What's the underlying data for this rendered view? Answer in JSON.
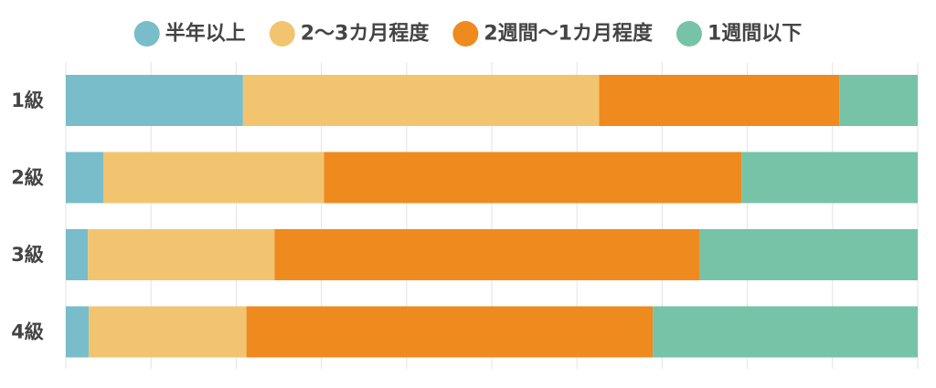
{
  "chart_data": {
    "type": "bar",
    "orientation": "horizontal",
    "stacking": "percent",
    "title": "",
    "xlabel": "",
    "ylabel": "",
    "xlim": [
      0,
      100
    ],
    "grid": true,
    "legend_position": "top",
    "categories": [
      "1級",
      "2級",
      "3級",
      "4級"
    ],
    "series": [
      {
        "name": "半年以上",
        "color": "#78bdc9",
        "values": [
          20.8,
          4.4,
          2.6,
          2.7
        ]
      },
      {
        "name": "2〜3カ月程度",
        "color": "#f3c470",
        "values": [
          41.8,
          25.9,
          21.9,
          18.5
        ]
      },
      {
        "name": "2週間〜1カ月程度",
        "color": "#ef8a1e",
        "values": [
          28.2,
          49.0,
          49.9,
          47.7
        ]
      },
      {
        "name": "1週間以下",
        "color": "#76c3a8",
        "values": [
          9.2,
          20.7,
          25.6,
          31.1
        ]
      }
    ]
  }
}
